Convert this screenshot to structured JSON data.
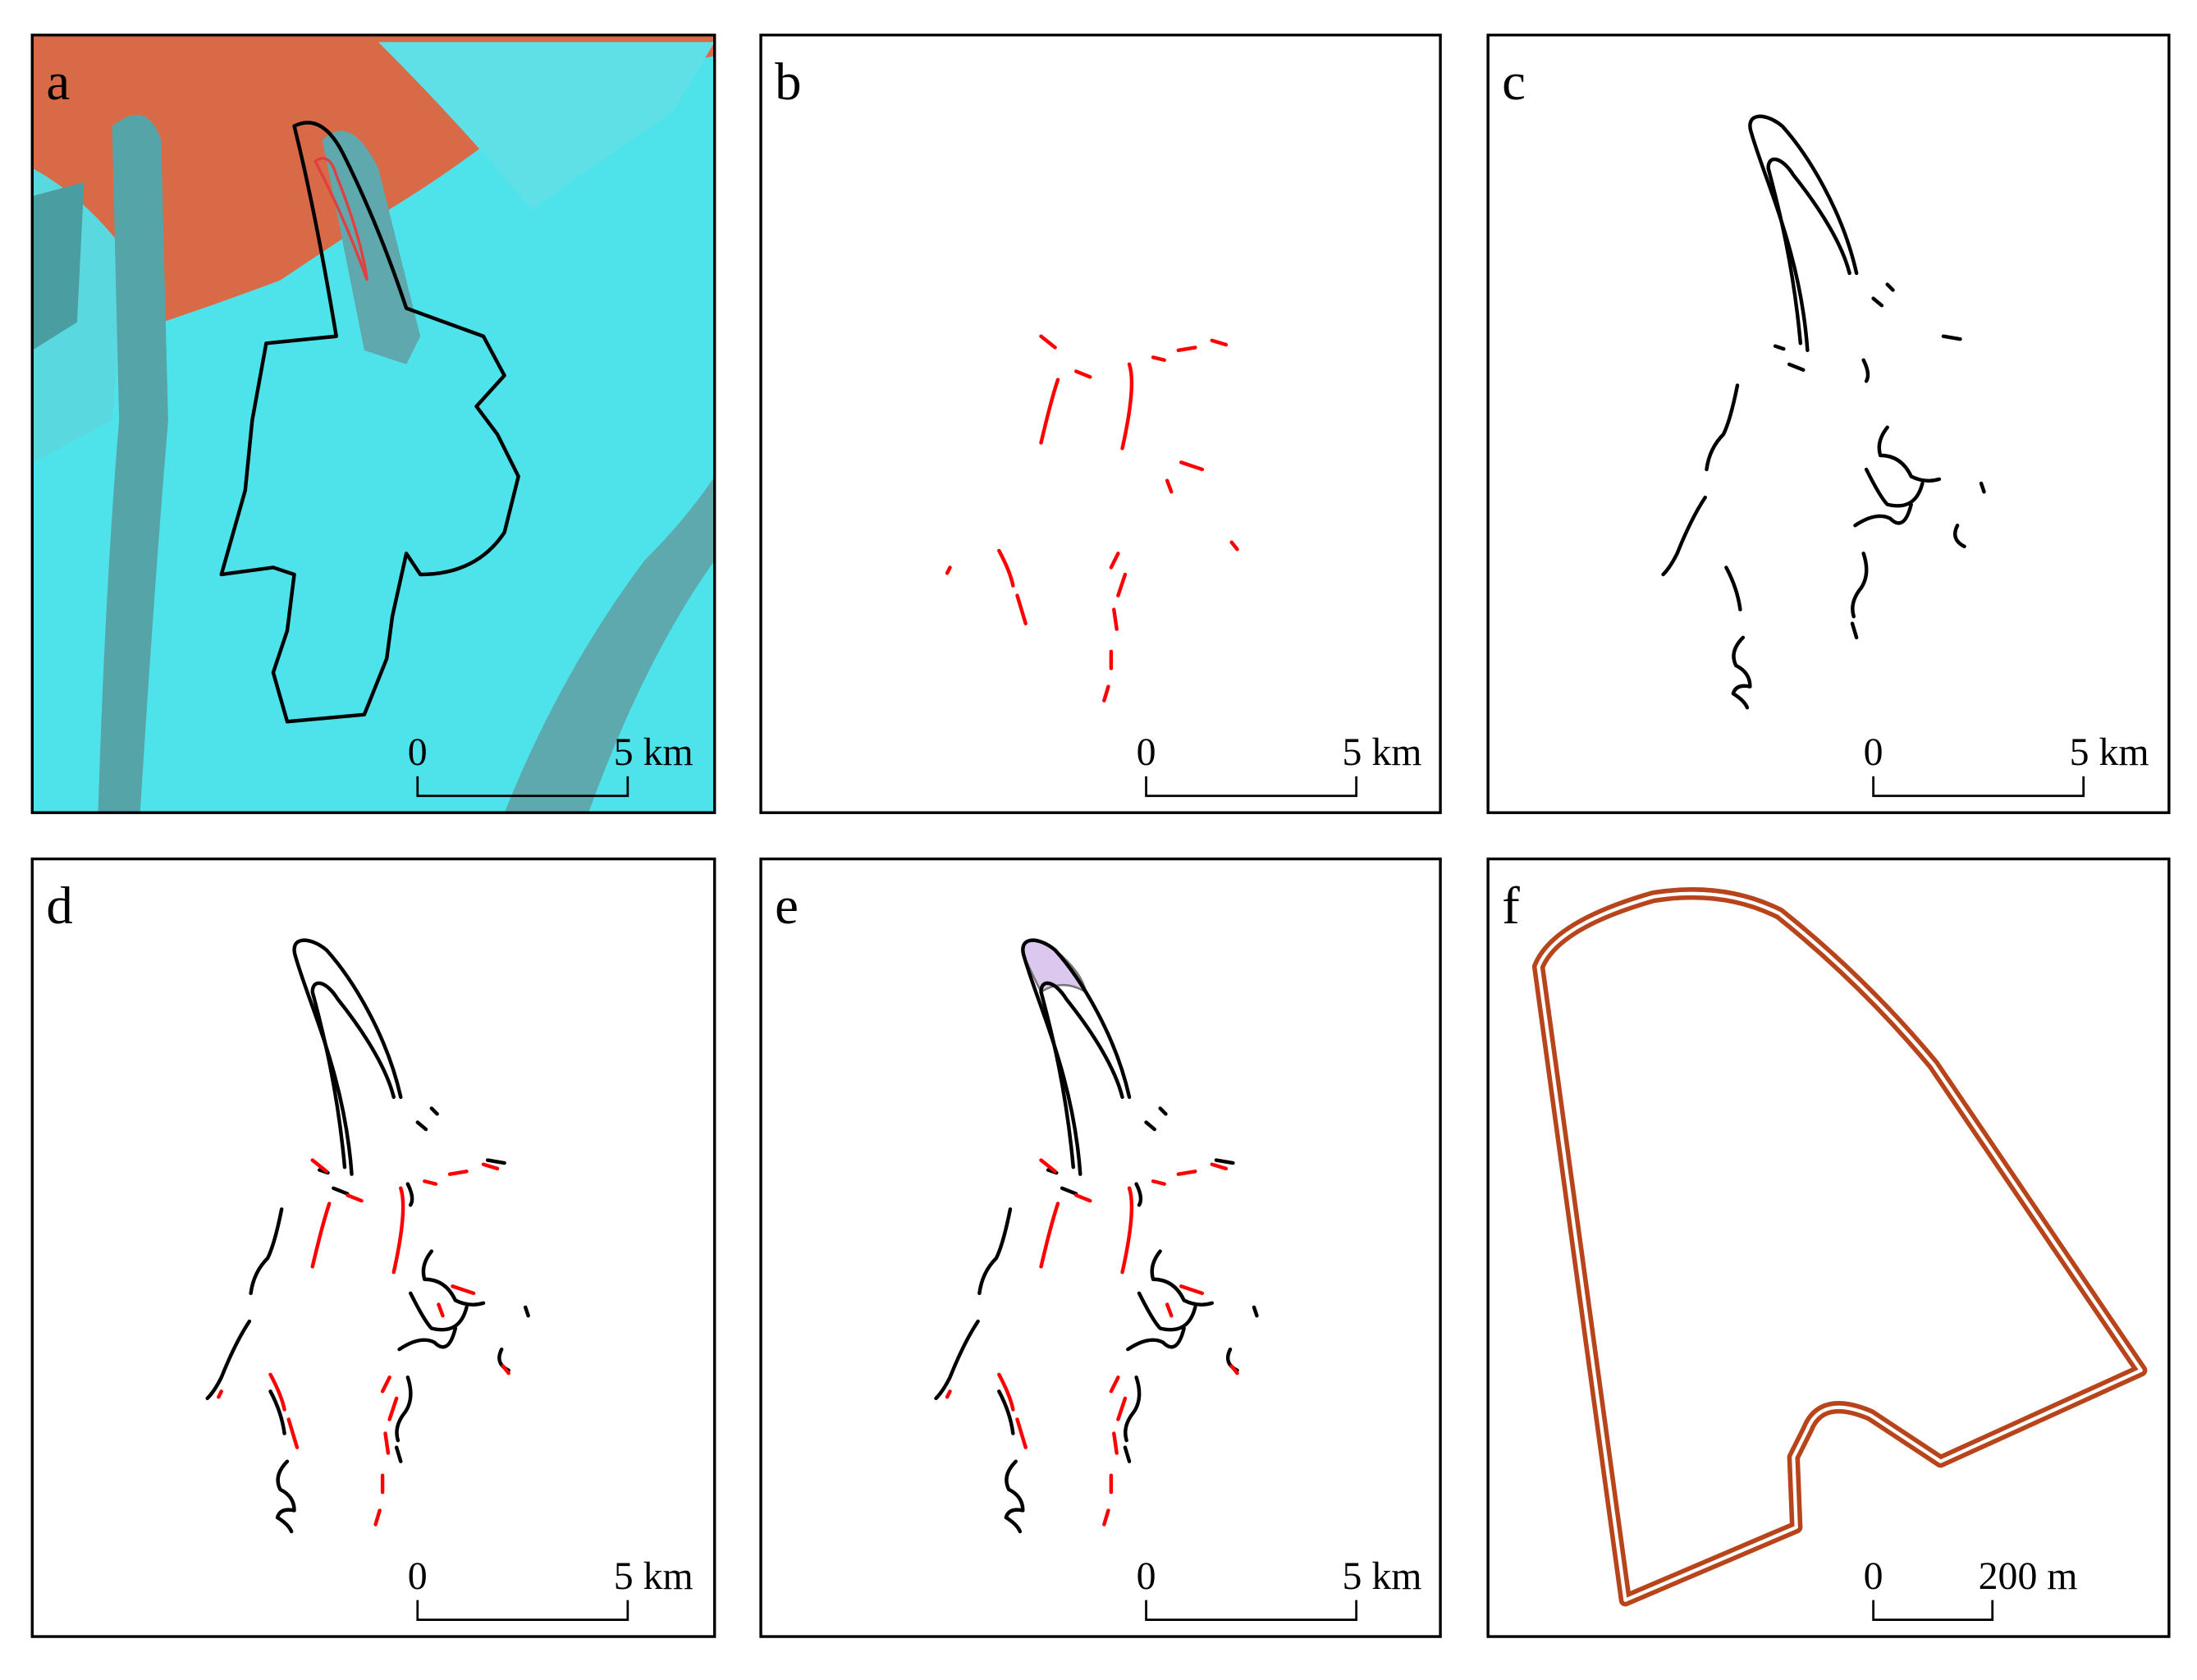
{
  "panels": [
    {
      "label": "a",
      "scale_bar": {
        "start": "0",
        "end": "5 km"
      }
    },
    {
      "label": "b",
      "scale_bar": {
        "start": "0",
        "end": "5 km"
      }
    },
    {
      "label": "c",
      "scale_bar": {
        "start": "0",
        "end": "5 km"
      }
    },
    {
      "label": "d",
      "scale_bar": {
        "start": "0",
        "end": "5 km"
      }
    },
    {
      "label": "e",
      "scale_bar": {
        "start": "0",
        "end": "5 km"
      }
    },
    {
      "label": "f",
      "scale_bar": {
        "start": "0",
        "end": "200 m"
      }
    }
  ]
}
